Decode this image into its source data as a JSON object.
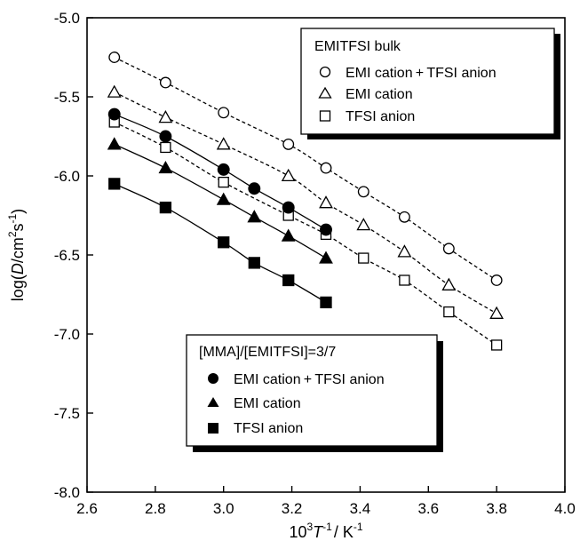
{
  "chart_data": {
    "type": "scatter",
    "xlabel": {
      "base": "10",
      "sup": "3",
      "var": "T",
      "sup2": "-1",
      "rest": "/ K",
      "sup3": "-1"
    },
    "ylabel": {
      "pre": "log(",
      "var": "D",
      "mid": "/cm",
      "sup1": "2",
      "mid2": "s",
      "sup2": "-1",
      "post": ")"
    },
    "xlim": [
      2.6,
      4.0
    ],
    "ylim": [
      -8.0,
      -5.0
    ],
    "xticks": [
      "2.6",
      "2.8",
      "3.0",
      "3.2",
      "3.4",
      "3.6",
      "3.8",
      "4.0"
    ],
    "yticks": [
      "-5.0",
      "-5.5",
      "-6.0",
      "-6.5",
      "-7.0",
      "-7.5",
      "-8.0"
    ],
    "xtick_values": [
      2.6,
      2.8,
      3.0,
      3.2,
      3.4,
      3.6,
      3.8,
      4.0
    ],
    "ytick_values": [
      -5.0,
      -5.5,
      -6.0,
      -6.5,
      -7.0,
      -7.5,
      -8.0
    ],
    "legends": [
      {
        "title": "EMITFSI bulk",
        "placement": "top-right",
        "entries": [
          "EMI cation + TFSI anion",
          "EMI cation",
          "TFSI anion"
        ]
      },
      {
        "title": "[MMA]/[EMITFSI]=3/7",
        "placement": "bottom-center",
        "entries": [
          "EMI cation + TFSI anion",
          "EMI cation",
          "TFSI anion"
        ]
      }
    ],
    "series": [
      {
        "group": "EMITFSI bulk",
        "label": "EMI cation+TFSI anion",
        "marker": "circle",
        "filled": false,
        "line": "dashed",
        "x": [
          2.68,
          2.83,
          3.0,
          3.19,
          3.3,
          3.41,
          3.53,
          3.66,
          3.8
        ],
        "y": [
          -5.25,
          -5.41,
          -5.6,
          -5.8,
          -5.95,
          -6.1,
          -6.26,
          -6.46,
          -6.66
        ]
      },
      {
        "group": "EMITFSI bulk",
        "label": "EMI cation",
        "marker": "triangle",
        "filled": false,
        "line": "dashed",
        "x": [
          2.68,
          2.83,
          3.0,
          3.19,
          3.3,
          3.41,
          3.53,
          3.66,
          3.8
        ],
        "y": [
          -5.47,
          -5.63,
          -5.8,
          -6.0,
          -6.17,
          -6.31,
          -6.48,
          -6.69,
          -6.87
        ]
      },
      {
        "group": "EMITFSI bulk",
        "label": "TFSI anion",
        "marker": "square",
        "filled": false,
        "line": "dashed",
        "x": [
          2.68,
          2.83,
          3.0,
          3.19,
          3.3,
          3.41,
          3.53,
          3.66,
          3.8
        ],
        "y": [
          -5.66,
          -5.82,
          -6.04,
          -6.25,
          -6.37,
          -6.52,
          -6.66,
          -6.86,
          -7.07
        ]
      },
      {
        "group": "[MMA]/[EMITFSI]=3/7",
        "label": "EMI cation+TFSI anion",
        "marker": "circle",
        "filled": true,
        "line": "solid",
        "x": [
          2.68,
          2.83,
          3.0,
          3.09,
          3.19,
          3.3
        ],
        "y": [
          -5.61,
          -5.75,
          -5.96,
          -6.08,
          -6.2,
          -6.34
        ]
      },
      {
        "group": "[MMA]/[EMITFSI]=3/7",
        "label": "EMI cation",
        "marker": "triangle",
        "filled": true,
        "line": "solid",
        "x": [
          2.68,
          2.83,
          3.0,
          3.09,
          3.19,
          3.3
        ],
        "y": [
          -5.8,
          -5.95,
          -6.15,
          -6.26,
          -6.38,
          -6.52
        ]
      },
      {
        "group": "[MMA]/[EMITFSI]=3/7",
        "label": "TFSI anion",
        "marker": "square",
        "filled": true,
        "line": "solid",
        "x": [
          2.68,
          2.83,
          3.0,
          3.09,
          3.19,
          3.3
        ],
        "y": [
          -6.05,
          -6.2,
          -6.42,
          -6.55,
          -6.66,
          -6.8
        ]
      }
    ],
    "grid": false,
    "colors": {
      "ink": "#000000",
      "background": "#ffffff"
    }
  }
}
